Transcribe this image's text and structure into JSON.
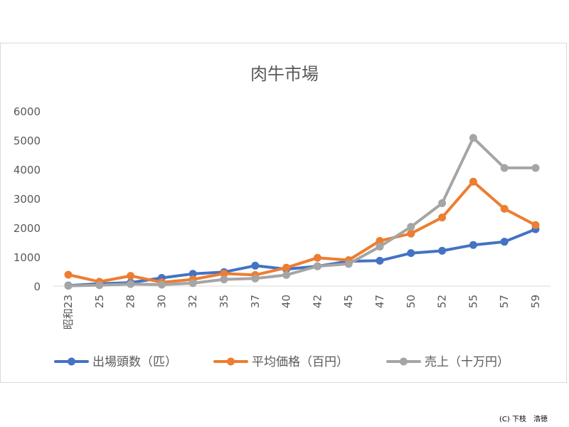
{
  "chart_data": {
    "type": "line",
    "title": "肉牛市場",
    "categories": [
      "昭和23",
      "25",
      "28",
      "30",
      "32",
      "35",
      "37",
      "40",
      "42",
      "45",
      "47",
      "50",
      "52",
      "55",
      "57",
      "59"
    ],
    "ylim": [
      0,
      6000
    ],
    "yticks": [
      0,
      1000,
      2000,
      3000,
      4000,
      5000,
      6000
    ],
    "grid": false,
    "legend_position": "bottom",
    "series": [
      {
        "name": "出場頭数（匹）",
        "color": "#4472c4",
        "values": [
          20,
          80,
          120,
          280,
          420,
          480,
          700,
          580,
          680,
          850,
          870,
          1130,
          1210,
          1410,
          1520,
          1950
        ]
      },
      {
        "name": "平均価格（百円）",
        "color": "#ed7d31",
        "values": [
          390,
          150,
          350,
          130,
          230,
          430,
          380,
          630,
          970,
          890,
          1550,
          1800,
          2350,
          3580,
          2650,
          2090
        ]
      },
      {
        "name": "売上（十万円）",
        "color": "#a5a5a5",
        "values": [
          10,
          30,
          70,
          50,
          100,
          230,
          260,
          380,
          680,
          760,
          1350,
          2030,
          2840,
          5080,
          4050,
          4050
        ]
      }
    ]
  },
  "credit": "(C) 下枝　浩徳"
}
